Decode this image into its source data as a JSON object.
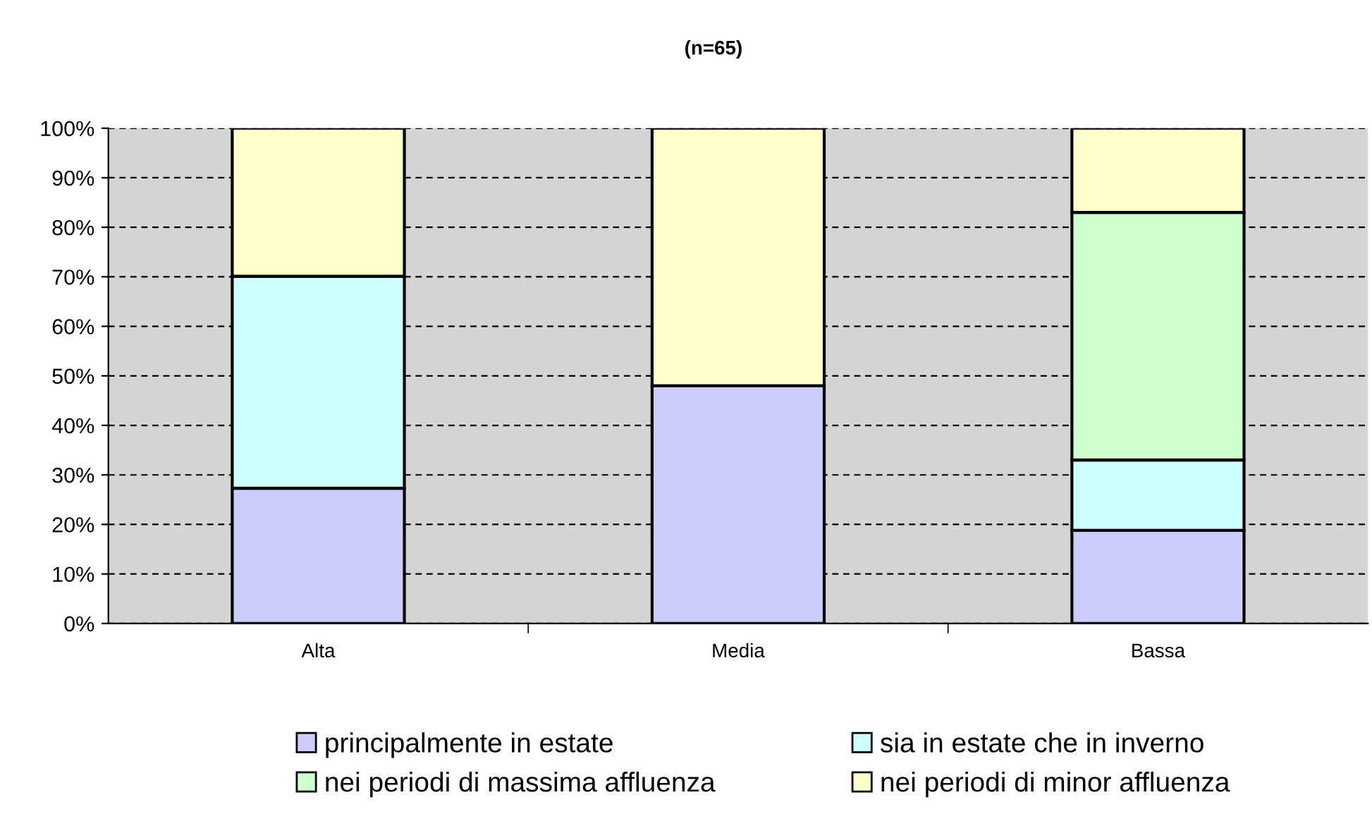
{
  "chart_data": {
    "type": "bar",
    "stacked": true,
    "title": "(n=65)",
    "categories": [
      "Alta",
      "Media",
      "Bassa"
    ],
    "series": [
      {
        "name": "principalmente in estate",
        "color": "#ccccff",
        "values": [
          27.3,
          48,
          18.8
        ]
      },
      {
        "name": "sia in estate che in inverno",
        "color": "#ccffff",
        "values": [
          42.8,
          0,
          14.2
        ]
      },
      {
        "name": "nei periodi di massima affluenza",
        "color": "#ccffcc",
        "values": [
          0,
          0,
          50
        ]
      },
      {
        "name": "nei periodi di minor affluenza",
        "color": "#ffffcc",
        "values": [
          29.9,
          52,
          17
        ]
      }
    ],
    "ylim": [
      0,
      100
    ],
    "yticks": [
      {
        "value": 0,
        "label": "0%"
      },
      {
        "value": 10,
        "label": "10%"
      },
      {
        "value": 20,
        "label": "20%"
      },
      {
        "value": 30,
        "label": "30%"
      },
      {
        "value": 40,
        "label": "40%"
      },
      {
        "value": 50,
        "label": "50%"
      },
      {
        "value": 60,
        "label": "60%"
      },
      {
        "value": 70,
        "label": "70%"
      },
      {
        "value": 80,
        "label": "80%"
      },
      {
        "value": 90,
        "label": "90%"
      },
      {
        "value": 100,
        "label": "100%"
      }
    ],
    "grid": "y",
    "legend": "bottom"
  }
}
